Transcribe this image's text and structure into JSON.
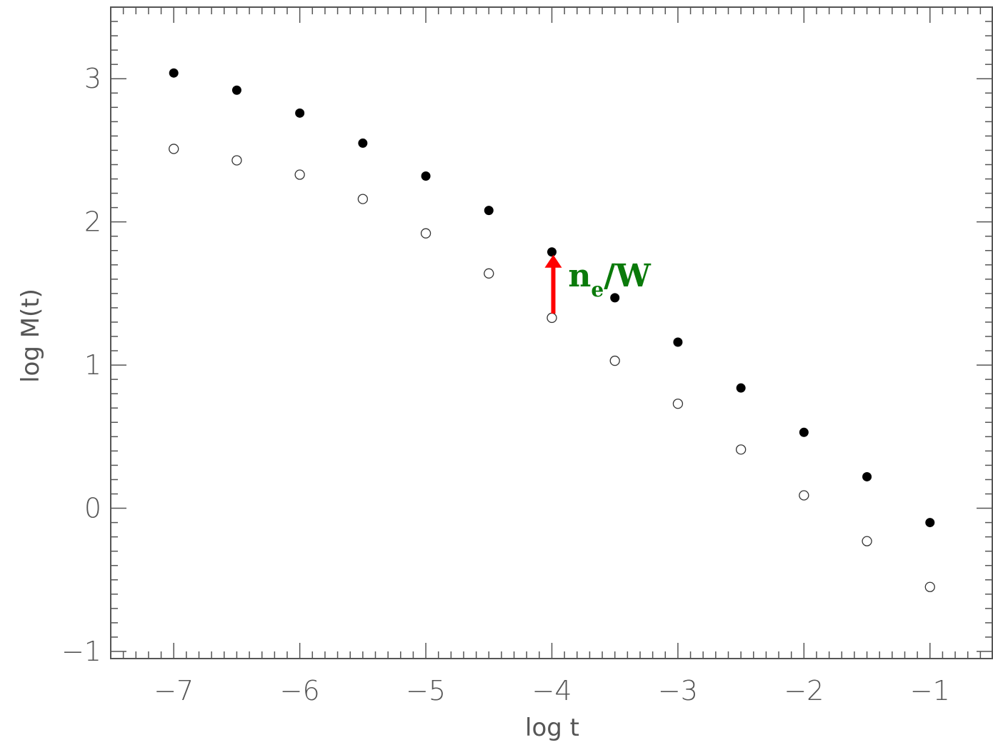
{
  "chart_data": {
    "type": "scatter",
    "title": "",
    "xlabel": "log t",
    "ylabel": "log M(t)",
    "xlim": [
      -7.5,
      -0.5
    ],
    "ylim": [
      -1.05,
      3.5
    ],
    "x_ticks": [
      -7,
      -6,
      -5,
      -4,
      -3,
      -2,
      -1
    ],
    "x_tick_labels": [
      "−7",
      "−6",
      "−5",
      "−4",
      "−3",
      "−2",
      "−1"
    ],
    "y_ticks": [
      -1,
      0,
      1,
      2,
      3
    ],
    "y_tick_labels": [
      "−1",
      "0",
      "1",
      "2",
      "3"
    ],
    "grid": false,
    "series": [
      {
        "style": "filled-circle",
        "color": "#000000",
        "x": [
          -7,
          -6.5,
          -6,
          -5.5,
          -5,
          -4.5,
          -4,
          -3.5,
          -3,
          -2.5,
          -2,
          -1.5,
          -1
        ],
        "y": [
          3.04,
          2.92,
          2.76,
          2.55,
          2.32,
          2.08,
          1.79,
          1.47,
          1.16,
          0.84,
          0.53,
          0.22,
          -0.1
        ]
      },
      {
        "style": "open-circle",
        "color": "#000000",
        "x": [
          -7,
          -6.5,
          -6,
          -5.5,
          -5,
          -4.5,
          -4,
          -3.5,
          -3,
          -2.5,
          -2,
          -1.5,
          -1
        ],
        "y": [
          2.51,
          2.43,
          2.33,
          2.16,
          1.92,
          1.64,
          1.33,
          1.03,
          0.73,
          0.41,
          0.09,
          -0.23,
          -0.55
        ]
      }
    ],
    "annotations": [
      {
        "type": "arrow",
        "color": "#ff0000",
        "x": -4,
        "from_y": 1.36,
        "to_y": 1.77
      },
      {
        "type": "text",
        "main": "n",
        "subscript": "e",
        "suffix": "/W",
        "color": "#0a7a0a",
        "x": -3.87,
        "y": 1.6
      }
    ]
  }
}
